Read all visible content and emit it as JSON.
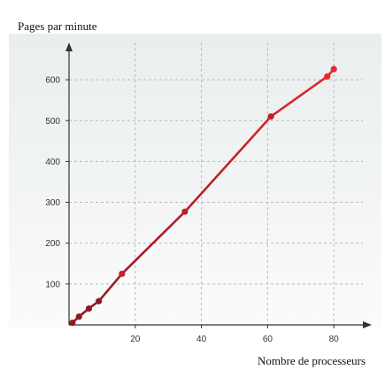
{
  "chart_data": {
    "type": "line",
    "title": "",
    "ylabel": "Pages par minute",
    "xlabel": "Nombre de processeurs",
    "xlim": [
      0,
      85
    ],
    "ylim": [
      0,
      650
    ],
    "x_ticks": [
      20,
      40,
      60,
      80
    ],
    "y_ticks": [
      100,
      200,
      300,
      400,
      500,
      600
    ],
    "grid": true,
    "series": [
      {
        "color": "#d4282c",
        "points": [
          {
            "x": 1,
            "y": 5
          },
          {
            "x": 3,
            "y": 20
          },
          {
            "x": 6,
            "y": 40
          },
          {
            "x": 9,
            "y": 58
          },
          {
            "x": 16,
            "y": 125
          },
          {
            "x": 35,
            "y": 277
          },
          {
            "x": 61,
            "y": 510
          },
          {
            "x": 78,
            "y": 608
          },
          {
            "x": 80,
            "y": 626
          }
        ]
      }
    ]
  }
}
